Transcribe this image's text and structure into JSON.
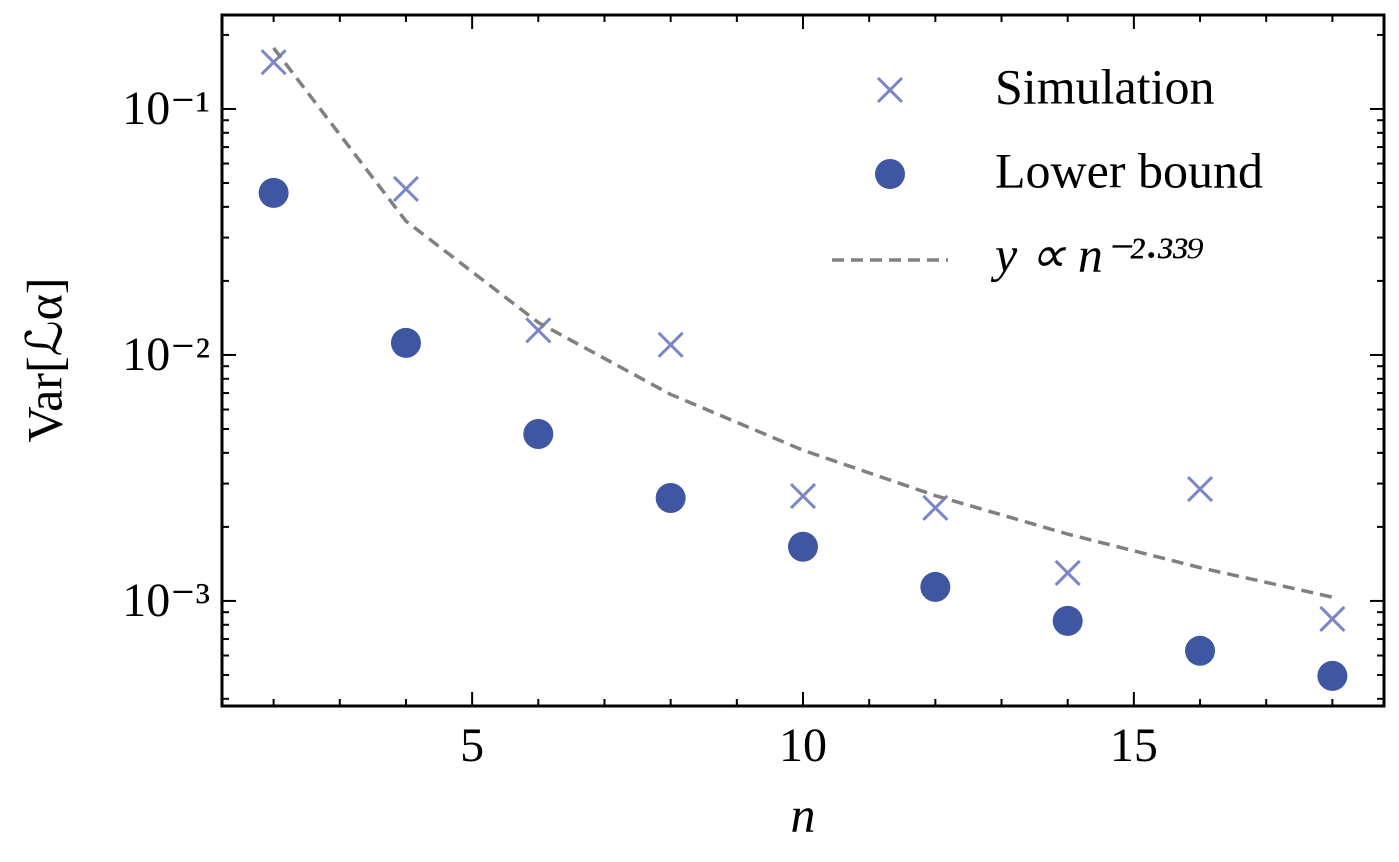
{
  "chart_data": {
    "type": "scatter",
    "x_label": "n",
    "y_label": "Var[ℒα]",
    "xlim": [
      1.22,
      18.78
    ],
    "ylim": [
      0.000374,
      0.241
    ],
    "xticks": [
      5,
      10,
      15
    ],
    "xminorticks": [
      2,
      3,
      4,
      6,
      7,
      8,
      9,
      11,
      12,
      13,
      14,
      16,
      17,
      18
    ],
    "yticks": [
      {
        "value": 0.001,
        "label": "10⁻³"
      },
      {
        "value": 0.01,
        "label": "10⁻²"
      },
      {
        "value": 0.1,
        "label": "10⁻¹"
      }
    ],
    "yminorticks": [
      0.0004,
      0.0005,
      0.0006,
      0.0007,
      0.0008,
      0.0009,
      0.002,
      0.003,
      0.004,
      0.005,
      0.006,
      0.007,
      0.008,
      0.009,
      0.02,
      0.03,
      0.04,
      0.05,
      0.06,
      0.07,
      0.08,
      0.09,
      0.2
    ],
    "ylog": true,
    "legend": "upper right",
    "series": [
      {
        "name": "Simulation",
        "marker": "x",
        "color": "#7b86c8",
        "x": [
          2,
          4,
          6,
          8,
          10,
          12,
          14,
          16,
          18
        ],
        "values": [
          0.155,
          0.0473,
          0.0126,
          0.011,
          0.00267,
          0.00239,
          0.0013,
          0.00285,
          0.000845
        ]
      },
      {
        "name": "Lower bound",
        "marker": "o",
        "color": "#3f56a3",
        "x": [
          2,
          4,
          6,
          8,
          10,
          12,
          14,
          16,
          18
        ],
        "values": [
          0.0456,
          0.0112,
          0.00477,
          0.00262,
          0.00166,
          0.00114,
          0.00083,
          0.000627,
          0.000496
        ]
      },
      {
        "name": "y ∝ n⁻²·³³⁹",
        "marker": "dashed-line",
        "color": "#808080",
        "x": [
          2,
          4,
          6,
          8,
          10,
          12,
          14,
          16,
          18
        ],
        "values": [
          0.177,
          0.035,
          0.01355,
          0.00691,
          0.0041,
          0.00268,
          0.00187,
          0.001366,
          0.001036
        ]
      }
    ]
  }
}
